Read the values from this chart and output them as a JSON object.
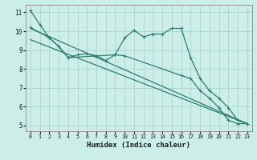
{
  "xlabel": "Humidex (Indice chaleur)",
  "bg_color": "#cceee8",
  "grid_color": "#aad4ce",
  "line_color": "#2e7d6e",
  "xlim": [
    -0.5,
    23.5
  ],
  "ylim": [
    4.7,
    11.4
  ],
  "xticks": [
    0,
    1,
    2,
    3,
    4,
    5,
    6,
    7,
    8,
    9,
    10,
    11,
    12,
    13,
    14,
    15,
    16,
    17,
    18,
    19,
    20,
    21,
    22,
    23
  ],
  "yticks": [
    5,
    6,
    7,
    8,
    9,
    10,
    11
  ],
  "main_x": [
    0,
    1,
    2,
    3,
    4,
    5,
    6,
    7,
    8,
    9,
    10,
    11,
    12,
    13,
    14,
    15,
    16,
    17,
    18,
    19,
    20,
    21,
    22,
    23
  ],
  "main_y": [
    11.1,
    10.35,
    9.65,
    9.2,
    8.6,
    8.75,
    8.8,
    8.7,
    8.45,
    8.75,
    9.65,
    10.05,
    9.7,
    9.85,
    9.85,
    10.15,
    10.15,
    8.6,
    7.5,
    6.85,
    6.45,
    5.95,
    5.28,
    5.1
  ],
  "line2_x": [
    0,
    2,
    3,
    4,
    9,
    10,
    16,
    17,
    18,
    19,
    20,
    21,
    22,
    23
  ],
  "line2_y": [
    10.2,
    9.65,
    9.2,
    8.6,
    8.75,
    8.7,
    7.65,
    7.5,
    6.85,
    6.45,
    5.95,
    5.28,
    5.1,
    5.1
  ],
  "trend1_x": [
    0,
    23
  ],
  "trend1_y": [
    10.15,
    5.1
  ],
  "trend2_x": [
    0,
    23
  ],
  "trend2_y": [
    9.55,
    5.1
  ]
}
